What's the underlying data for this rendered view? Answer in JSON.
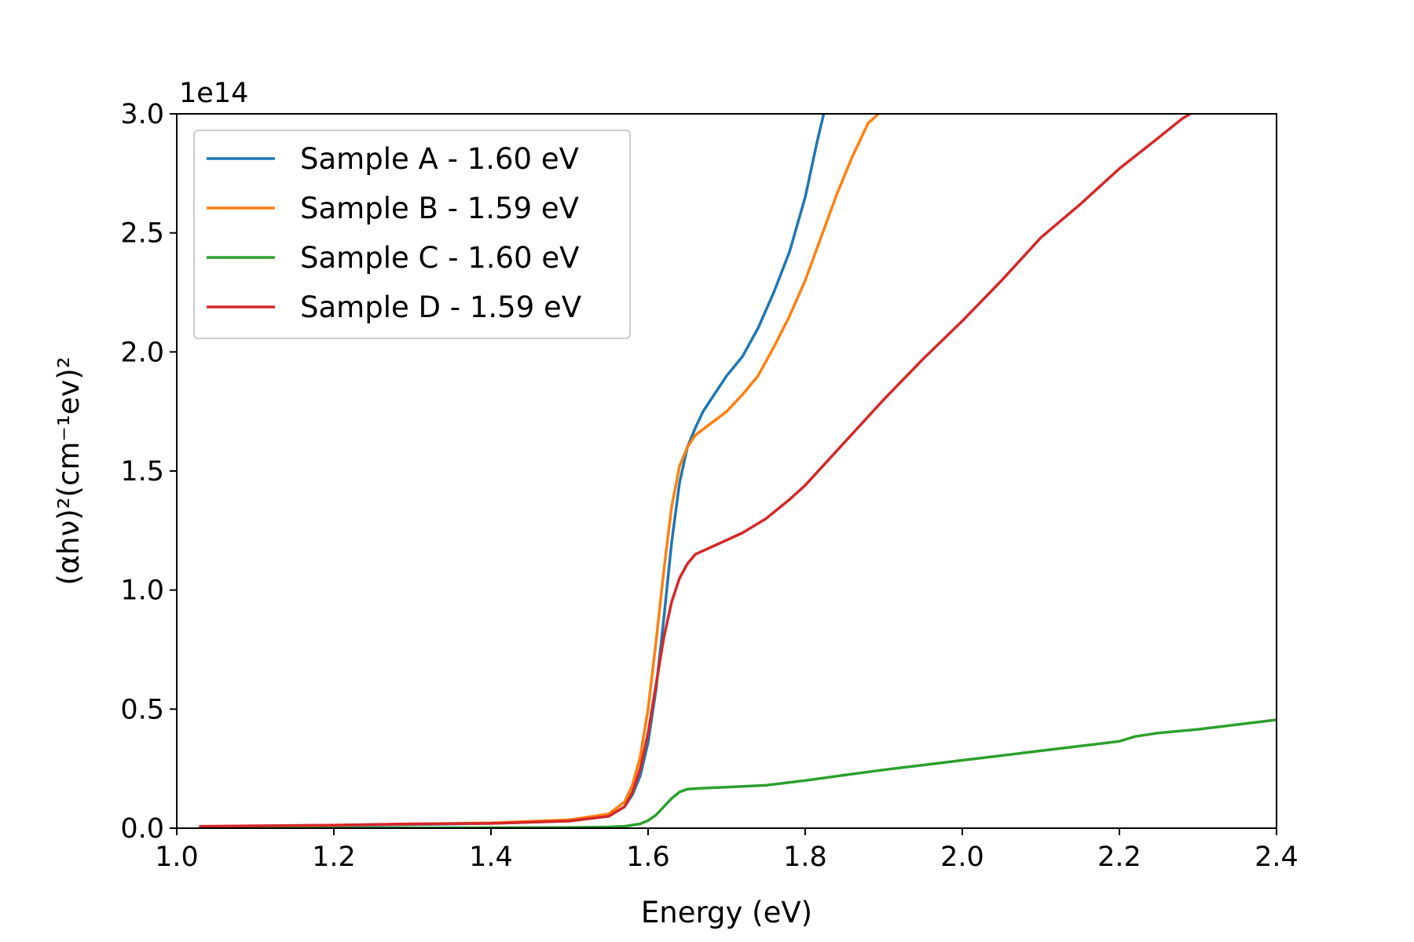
{
  "chart_data": {
    "type": "line",
    "xlabel": "Energy (eV)",
    "ylabel": "(αhν)²(cm⁻¹ev)²",
    "y_offset_label": "1e14",
    "xlim": [
      1.0,
      2.4
    ],
    "ylim": [
      0.0,
      3.0
    ],
    "x_ticks": [
      1.0,
      1.2,
      1.4,
      1.6,
      1.8,
      2.0,
      2.2,
      2.4
    ],
    "x_tick_labels": [
      "1.0",
      "1.2",
      "1.4",
      "1.6",
      "1.8",
      "2.0",
      "2.2",
      "2.4"
    ],
    "y_ticks": [
      0.0,
      0.5,
      1.0,
      1.5,
      2.0,
      2.5,
      3.0
    ],
    "y_tick_labels": [
      "0.0",
      "0.5",
      "1.0",
      "1.5",
      "2.0",
      "2.5",
      "3.0"
    ],
    "grid": false,
    "legend_position": "top-left",
    "series": [
      {
        "name": "Sample A - 1.60 eV",
        "color": "#1f77b4",
        "points": [
          [
            1.03,
            0.005
          ],
          [
            1.1,
            0.007
          ],
          [
            1.2,
            0.01
          ],
          [
            1.3,
            0.015
          ],
          [
            1.4,
            0.02
          ],
          [
            1.5,
            0.03
          ],
          [
            1.55,
            0.05
          ],
          [
            1.57,
            0.09
          ],
          [
            1.58,
            0.14
          ],
          [
            1.59,
            0.22
          ],
          [
            1.6,
            0.36
          ],
          [
            1.61,
            0.58
          ],
          [
            1.62,
            0.88
          ],
          [
            1.63,
            1.2
          ],
          [
            1.64,
            1.45
          ],
          [
            1.65,
            1.6
          ],
          [
            1.66,
            1.68
          ],
          [
            1.67,
            1.75
          ],
          [
            1.68,
            1.8
          ],
          [
            1.69,
            1.85
          ],
          [
            1.7,
            1.9
          ],
          [
            1.72,
            1.98
          ],
          [
            1.74,
            2.1
          ],
          [
            1.76,
            2.25
          ],
          [
            1.78,
            2.42
          ],
          [
            1.8,
            2.65
          ],
          [
            1.815,
            2.88
          ],
          [
            1.825,
            3.02
          ]
        ]
      },
      {
        "name": "Sample B - 1.59 eV",
        "color": "#ff7f0e",
        "points": [
          [
            1.03,
            0.005
          ],
          [
            1.1,
            0.008
          ],
          [
            1.2,
            0.012
          ],
          [
            1.3,
            0.017
          ],
          [
            1.4,
            0.022
          ],
          [
            1.5,
            0.035
          ],
          [
            1.55,
            0.06
          ],
          [
            1.57,
            0.11
          ],
          [
            1.58,
            0.18
          ],
          [
            1.59,
            0.3
          ],
          [
            1.6,
            0.5
          ],
          [
            1.61,
            0.78
          ],
          [
            1.62,
            1.08
          ],
          [
            1.63,
            1.35
          ],
          [
            1.64,
            1.52
          ],
          [
            1.65,
            1.6
          ],
          [
            1.66,
            1.65
          ],
          [
            1.68,
            1.7
          ],
          [
            1.7,
            1.75
          ],
          [
            1.72,
            1.82
          ],
          [
            1.74,
            1.9
          ],
          [
            1.76,
            2.02
          ],
          [
            1.78,
            2.15
          ],
          [
            1.8,
            2.3
          ],
          [
            1.82,
            2.48
          ],
          [
            1.84,
            2.66
          ],
          [
            1.86,
            2.82
          ],
          [
            1.88,
            2.96
          ],
          [
            1.9,
            3.02
          ]
        ]
      },
      {
        "name": "Sample C - 1.60 eV",
        "color": "#2ca02c",
        "points": [
          [
            1.03,
            0.0
          ],
          [
            1.2,
            0.0
          ],
          [
            1.4,
            0.002
          ],
          [
            1.5,
            0.003
          ],
          [
            1.55,
            0.005
          ],
          [
            1.57,
            0.008
          ],
          [
            1.59,
            0.018
          ],
          [
            1.6,
            0.032
          ],
          [
            1.61,
            0.055
          ],
          [
            1.62,
            0.09
          ],
          [
            1.63,
            0.125
          ],
          [
            1.64,
            0.152
          ],
          [
            1.65,
            0.164
          ],
          [
            1.67,
            0.168
          ],
          [
            1.7,
            0.172
          ],
          [
            1.75,
            0.18
          ],
          [
            1.8,
            0.2
          ],
          [
            1.85,
            0.223
          ],
          [
            1.9,
            0.245
          ],
          [
            1.95,
            0.265
          ],
          [
            2.0,
            0.285
          ],
          [
            2.05,
            0.305
          ],
          [
            2.1,
            0.325
          ],
          [
            2.15,
            0.345
          ],
          [
            2.2,
            0.365
          ],
          [
            2.22,
            0.385
          ],
          [
            2.25,
            0.4
          ],
          [
            2.3,
            0.415
          ],
          [
            2.35,
            0.435
          ],
          [
            2.4,
            0.455
          ]
        ]
      },
      {
        "name": "Sample D - 1.59 eV",
        "color": "#d62728",
        "points": [
          [
            1.03,
            0.008
          ],
          [
            1.1,
            0.01
          ],
          [
            1.2,
            0.013
          ],
          [
            1.3,
            0.018
          ],
          [
            1.4,
            0.02
          ],
          [
            1.5,
            0.03
          ],
          [
            1.55,
            0.05
          ],
          [
            1.57,
            0.09
          ],
          [
            1.58,
            0.15
          ],
          [
            1.59,
            0.25
          ],
          [
            1.6,
            0.4
          ],
          [
            1.61,
            0.6
          ],
          [
            1.62,
            0.8
          ],
          [
            1.63,
            0.95
          ],
          [
            1.64,
            1.05
          ],
          [
            1.65,
            1.11
          ],
          [
            1.66,
            1.15
          ],
          [
            1.68,
            1.18
          ],
          [
            1.7,
            1.21
          ],
          [
            1.72,
            1.24
          ],
          [
            1.75,
            1.3
          ],
          [
            1.78,
            1.38
          ],
          [
            1.8,
            1.44
          ],
          [
            1.85,
            1.62
          ],
          [
            1.9,
            1.8
          ],
          [
            1.95,
            1.97
          ],
          [
            2.0,
            2.13
          ],
          [
            2.05,
            2.3
          ],
          [
            2.1,
            2.48
          ],
          [
            2.15,
            2.62
          ],
          [
            2.2,
            2.77
          ],
          [
            2.25,
            2.9
          ],
          [
            2.28,
            2.98
          ],
          [
            2.295,
            3.01
          ]
        ]
      }
    ]
  }
}
